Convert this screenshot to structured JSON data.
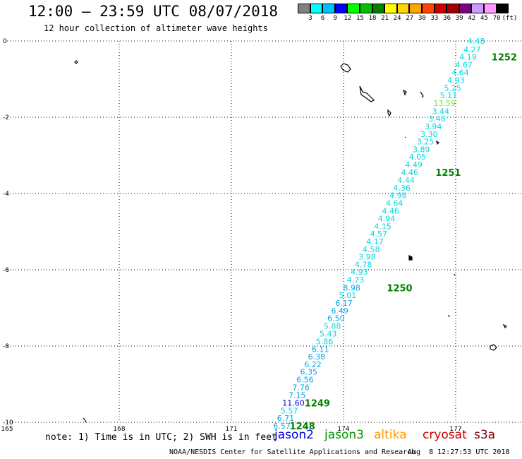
{
  "header": {
    "title": "12:00 – 23:59 UTC 08/07/2018",
    "subtitle": "12 hour collection of altimeter wave heights"
  },
  "colorbar": {
    "colors": [
      "#808080",
      "#00ffff",
      "#00bfff",
      "#0000ff",
      "#00ff00",
      "#00c000",
      "#008000",
      "#ffff00",
      "#ffd700",
      "#ffa500",
      "#ff4500",
      "#cc0000",
      "#a00000",
      "#800080",
      "#cc99ff",
      "#ff99ff",
      "#000000"
    ],
    "labels": [
      "3",
      "6",
      "9",
      "12",
      "15",
      "18",
      "21",
      "24",
      "27",
      "30",
      "33",
      "36",
      "39",
      "42",
      "45",
      "70",
      "(ft)"
    ]
  },
  "chart_data": {
    "type": "scatter",
    "xlim": [
      165,
      179
    ],
    "ylim": [
      -10,
      0
    ],
    "x_ticks": [
      "165",
      "168",
      "171",
      "174",
      "177"
    ],
    "y_ticks": [
      "0",
      "-2",
      "-4",
      "-6",
      "-8",
      "-10"
    ],
    "grid": true,
    "points": [
      {
        "lon": 177.55,
        "lat": 0.0,
        "label": "4.48",
        "color": "#00d8e0"
      },
      {
        "lon": 177.44,
        "lat": -0.22,
        "label": "4.27",
        "color": "#00d8e0"
      },
      {
        "lon": 177.33,
        "lat": -0.42,
        "label": "4.19",
        "color": "#00d8e0"
      },
      {
        "lon": 177.22,
        "lat": -0.62,
        "label": "4.67",
        "color": "#00d8e0"
      },
      {
        "lon": 177.12,
        "lat": -0.82,
        "label": "4.64",
        "color": "#00d8e0"
      },
      {
        "lon": 177.01,
        "lat": -1.03,
        "label": "4.93",
        "color": "#00d8e0"
      },
      {
        "lon": 176.92,
        "lat": -1.23,
        "label": "5.25",
        "color": "#00d8e0"
      },
      {
        "lon": 176.81,
        "lat": -1.43,
        "label": "5.11",
        "color": "#00d8e0"
      },
      {
        "lon": 176.7,
        "lat": -1.63,
        "label": "13.59",
        "color": "#80e040"
      },
      {
        "lon": 176.6,
        "lat": -1.84,
        "label": "3.44",
        "color": "#00d8e0"
      },
      {
        "lon": 176.5,
        "lat": -2.04,
        "label": "3.48",
        "color": "#00d8e0"
      },
      {
        "lon": 176.4,
        "lat": -2.24,
        "label": "3.94",
        "color": "#00d8e0"
      },
      {
        "lon": 176.29,
        "lat": -2.44,
        "label": "3.30",
        "color": "#00d8e0"
      },
      {
        "lon": 176.19,
        "lat": -2.64,
        "label": "3.25",
        "color": "#00d8e0"
      },
      {
        "lon": 176.08,
        "lat": -2.84,
        "label": "3.89",
        "color": "#00d8e0"
      },
      {
        "lon": 175.98,
        "lat": -3.04,
        "label": "4.05",
        "color": "#00d8e0"
      },
      {
        "lon": 175.88,
        "lat": -3.24,
        "label": "4.49",
        "color": "#00d8e0"
      },
      {
        "lon": 175.77,
        "lat": -3.44,
        "label": "4.46",
        "color": "#00d8e0"
      },
      {
        "lon": 175.67,
        "lat": -3.65,
        "label": "4.44",
        "color": "#00d8e0"
      },
      {
        "lon": 175.56,
        "lat": -3.85,
        "label": "4.36",
        "color": "#00d8e0"
      },
      {
        "lon": 175.46,
        "lat": -4.05,
        "label": "4.98",
        "color": "#00d8e0"
      },
      {
        "lon": 175.36,
        "lat": -4.25,
        "label": "4.64",
        "color": "#00d8e0"
      },
      {
        "lon": 175.26,
        "lat": -4.45,
        "label": "4.46",
        "color": "#00d8e0"
      },
      {
        "lon": 175.15,
        "lat": -4.66,
        "label": "4.94",
        "color": "#00d8e0"
      },
      {
        "lon": 175.05,
        "lat": -4.86,
        "label": "4.15",
        "color": "#00d8e0"
      },
      {
        "lon": 174.94,
        "lat": -5.06,
        "label": "4.57",
        "color": "#00d8e0"
      },
      {
        "lon": 174.84,
        "lat": -5.26,
        "label": "4.17",
        "color": "#00d8e0"
      },
      {
        "lon": 174.74,
        "lat": -5.46,
        "label": "4.58",
        "color": "#00d8e0"
      },
      {
        "lon": 174.63,
        "lat": -5.66,
        "label": "3.98",
        "color": "#00d8e0"
      },
      {
        "lon": 174.53,
        "lat": -5.86,
        "label": "4.78",
        "color": "#00d8e0"
      },
      {
        "lon": 174.42,
        "lat": -6.06,
        "label": "4.93",
        "color": "#00d8e0"
      },
      {
        "lon": 174.32,
        "lat": -6.26,
        "label": "4.73",
        "color": "#00d8e0"
      },
      {
        "lon": 174.22,
        "lat": -6.47,
        "label": "8.98",
        "color": "#00a8e8"
      },
      {
        "lon": 174.11,
        "lat": -6.67,
        "label": "5.01",
        "color": "#00d8e0"
      },
      {
        "lon": 174.01,
        "lat": -6.87,
        "label": "6.17",
        "color": "#00a8e8"
      },
      {
        "lon": 173.9,
        "lat": -7.07,
        "label": "6.49",
        "color": "#00a8e8"
      },
      {
        "lon": 173.8,
        "lat": -7.27,
        "label": "6.50",
        "color": "#00a8e8"
      },
      {
        "lon": 173.7,
        "lat": -7.47,
        "label": "5.88",
        "color": "#00d8e0"
      },
      {
        "lon": 173.59,
        "lat": -7.68,
        "label": "5.43",
        "color": "#00d8e0"
      },
      {
        "lon": 173.49,
        "lat": -7.88,
        "label": "5.86",
        "color": "#00d8e0"
      },
      {
        "lon": 173.38,
        "lat": -8.08,
        "label": "6.11",
        "color": "#00a8e8"
      },
      {
        "lon": 173.28,
        "lat": -8.28,
        "label": "6.38",
        "color": "#00a8e8"
      },
      {
        "lon": 173.18,
        "lat": -8.48,
        "label": "6.22",
        "color": "#00a8e8"
      },
      {
        "lon": 173.07,
        "lat": -8.68,
        "label": "6.35",
        "color": "#00a8e8"
      },
      {
        "lon": 172.97,
        "lat": -8.88,
        "label": "6.56",
        "color": "#00a8e8"
      },
      {
        "lon": 172.86,
        "lat": -9.08,
        "label": "7.76",
        "color": "#00a8e8"
      },
      {
        "lon": 172.76,
        "lat": -9.29,
        "label": "7.15",
        "color": "#00a8e8"
      },
      {
        "lon": 172.66,
        "lat": -9.49,
        "label": "11.60",
        "color": "#0000e0"
      },
      {
        "lon": 172.55,
        "lat": -9.69,
        "label": "5.57",
        "color": "#00d8e0"
      },
      {
        "lon": 172.45,
        "lat": -9.89,
        "label": "6.71",
        "color": "#00a8e8"
      },
      {
        "lon": 172.35,
        "lat": -10.09,
        "label": "6.57",
        "color": "#00a8e8"
      }
    ],
    "time_labels": [
      {
        "label": "1252",
        "lon": 178.3,
        "lat": -0.42
      },
      {
        "label": "1251",
        "lon": 176.8,
        "lat": -3.44
      },
      {
        "label": "1250",
        "lon": 175.5,
        "lat": -6.47
      },
      {
        "label": "1249",
        "lon": 173.3,
        "lat": -9.49
      },
      {
        "label": "1248",
        "lon": 172.9,
        "lat": -10.09
      }
    ]
  },
  "footer": {
    "note": "note: 1) Time is in UTC; 2) SWH is in feet",
    "satellites": [
      {
        "name": "jason2",
        "color": "#0000dd"
      },
      {
        "name": "jason3",
        "color": "#009900"
      },
      {
        "name": "altika",
        "color": "#ff9900"
      },
      {
        "name": "cryosat",
        "color": "#cc0000"
      },
      {
        "name": "s3a",
        "color": "#880000"
      }
    ],
    "credit": "NOAA/NESDIS Center for Satellite Applications and Research",
    "timestamp": "Aug  8 12:27:53 UTC 2018"
  }
}
